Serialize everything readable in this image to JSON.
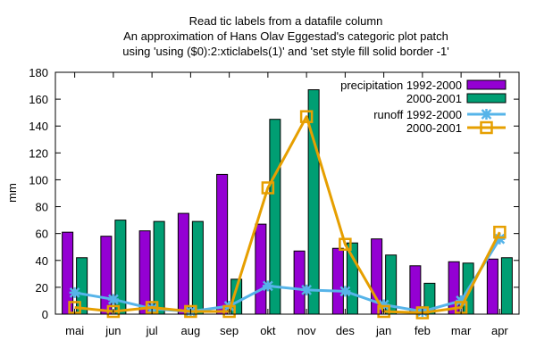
{
  "chart_data": {
    "type": "bar",
    "title_lines": [
      "Read tic labels from a datafile column",
      "An approximation of Hans Olav Eggestad's categoric plot patch",
      "using 'using ($0):2:xticlabels(1)' and 'set style fill solid border -1'"
    ],
    "ylabel": "mm",
    "xlabel": "",
    "ylim": [
      0,
      180
    ],
    "yticks": [
      "0",
      "20",
      "40",
      "60",
      "80",
      "100",
      "120",
      "140",
      "160",
      "180"
    ],
    "categories": [
      "mai",
      "jun",
      "jul",
      "aug",
      "sep",
      "okt",
      "nov",
      "des",
      "jan",
      "feb",
      "mar",
      "apr"
    ],
    "legend_position": "top-right",
    "grid": false,
    "series": [
      {
        "name": "precipitation 1992-2000",
        "kind": "bar",
        "color": "#9400d3",
        "values": [
          61,
          58,
          62,
          75,
          104,
          67,
          47,
          49,
          56,
          36,
          39,
          41
        ]
      },
      {
        "name": "2000-2001",
        "kind": "bar",
        "color": "#009e73",
        "values": [
          42,
          70,
          69,
          69,
          26,
          145,
          167,
          53,
          44,
          23,
          38,
          42
        ]
      },
      {
        "name": "runoff 1992-2000",
        "kind": "line",
        "marker": "star",
        "color": "#56b4e9",
        "values": [
          16,
          11,
          4,
          2,
          6,
          21,
          18,
          17,
          7,
          2,
          10,
          56
        ]
      },
      {
        "name": "2000-2001",
        "kind": "line",
        "marker": "square",
        "color": "#e69f00",
        "values": [
          5,
          2,
          5,
          2,
          2,
          94,
          147,
          52,
          2,
          1,
          5,
          61
        ]
      }
    ]
  }
}
